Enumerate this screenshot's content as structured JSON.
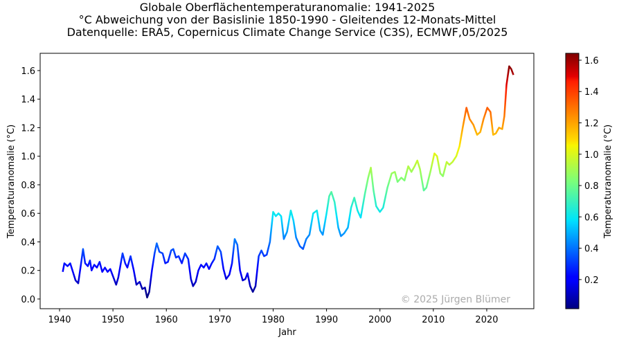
{
  "chart_data": {
    "type": "line",
    "title": [
      "Globale Oberflächentemperaturanomalie: 1941-2025",
      "°C Abweichung von der Basislinie 1850-1990 - Gleitendes 12-Monats-Mittel",
      "Datenquelle: ERA5, Copernicus Climate Change Service (C3S), ECMWF,05/2025"
    ],
    "x_label": "Jahr",
    "y_label": "Temperaturanomalie (°C)",
    "annotation": "© 2025 Jürgen Blümer",
    "colormap": "jet",
    "colorbar": {
      "label": "Temperaturanomalie (°C)",
      "clim": [
        0.014,
        1.644
      ],
      "ticks": [
        0.2,
        0.4,
        0.6,
        0.8,
        {
          "value": 1.0,
          "label": "1.0"
        },
        1.2,
        1.4,
        1.6
      ]
    },
    "x": [
      1940.6,
      1940.9,
      1941.5,
      1942,
      1942.5,
      1943,
      1943.5,
      1944,
      1944.4,
      1944.8,
      1945.3,
      1945.7,
      1946,
      1946.5,
      1947,
      1947.5,
      1948,
      1948.5,
      1949,
      1949.5,
      1950,
      1950.6,
      1951,
      1951.8,
      1952.3,
      1952.7,
      1953.3,
      1953.9,
      1954.4,
      1955,
      1955.5,
      1956,
      1956.4,
      1956.8,
      1957.3,
      1957.8,
      1958.2,
      1958.7,
      1959.3,
      1959.8,
      1960.3,
      1960.9,
      1961.3,
      1961.8,
      1962.3,
      1962.9,
      1963.5,
      1964.1,
      1964.6,
      1965,
      1965.5,
      1966,
      1966.5,
      1967,
      1967.5,
      1968,
      1968.5,
      1969,
      1969.6,
      1970.2,
      1970.7,
      1971.2,
      1971.8,
      1972.3,
      1972.8,
      1973.3,
      1973.8,
      1974.3,
      1974.8,
      1975.2,
      1975.7,
      1976.2,
      1976.7,
      1977.3,
      1977.8,
      1978.3,
      1978.8,
      1979.4,
      1980,
      1980.5,
      1981,
      1981.5,
      1982,
      1982.6,
      1983.3,
      1983.8,
      1984.3,
      1985,
      1985.6,
      1986.2,
      1986.8,
      1987.5,
      1988.2,
      1988.8,
      1989.3,
      1990,
      1990.5,
      1990.9,
      1991.5,
      1992.2,
      1992.7,
      1993.3,
      1994,
      1994.6,
      1995.2,
      1995.8,
      1996.4,
      1997.2,
      1997.8,
      1998.3,
      1998.8,
      1999.3,
      2000,
      2000.6,
      2001.4,
      2002.2,
      2002.8,
      2003.3,
      2004,
      2004.6,
      2005.3,
      2005.9,
      2006.5,
      2007,
      2007.5,
      2008.2,
      2008.7,
      2009.5,
      2010.2,
      2010.7,
      2011.3,
      2011.8,
      2012.5,
      2013,
      2013.6,
      2014.3,
      2014.9,
      2015.5,
      2016.2,
      2016.8,
      2017.5,
      2018.2,
      2018.8,
      2019.4,
      2020.1,
      2020.7,
      2021.2,
      2021.7,
      2022.3,
      2022.9,
      2023.3,
      2023.7,
      2024.2,
      2024.6,
      2025.0
    ],
    "values": [
      0.19,
      0.25,
      0.23,
      0.25,
      0.19,
      0.13,
      0.11,
      0.24,
      0.35,
      0.25,
      0.23,
      0.27,
      0.2,
      0.24,
      0.22,
      0.26,
      0.19,
      0.22,
      0.19,
      0.21,
      0.16,
      0.1,
      0.15,
      0.32,
      0.25,
      0.22,
      0.3,
      0.2,
      0.1,
      0.12,
      0.07,
      0.08,
      0.01,
      0.05,
      0.2,
      0.32,
      0.39,
      0.33,
      0.32,
      0.25,
      0.26,
      0.34,
      0.35,
      0.29,
      0.3,
      0.25,
      0.32,
      0.28,
      0.14,
      0.09,
      0.12,
      0.2,
      0.24,
      0.22,
      0.25,
      0.21,
      0.25,
      0.28,
      0.37,
      0.33,
      0.21,
      0.14,
      0.17,
      0.25,
      0.42,
      0.38,
      0.2,
      0.13,
      0.14,
      0.18,
      0.09,
      0.05,
      0.09,
      0.3,
      0.34,
      0.3,
      0.31,
      0.4,
      0.61,
      0.58,
      0.6,
      0.58,
      0.42,
      0.47,
      0.62,
      0.55,
      0.43,
      0.37,
      0.35,
      0.42,
      0.45,
      0.6,
      0.62,
      0.48,
      0.45,
      0.6,
      0.72,
      0.75,
      0.68,
      0.5,
      0.44,
      0.46,
      0.5,
      0.64,
      0.71,
      0.62,
      0.57,
      0.74,
      0.85,
      0.92,
      0.76,
      0.65,
      0.61,
      0.64,
      0.78,
      0.88,
      0.89,
      0.82,
      0.85,
      0.83,
      0.93,
      0.89,
      0.93,
      0.97,
      0.91,
      0.76,
      0.78,
      0.9,
      1.02,
      1.0,
      0.88,
      0.86,
      0.96,
      0.94,
      0.96,
      1.0,
      1.07,
      1.2,
      1.34,
      1.26,
      1.22,
      1.15,
      1.17,
      1.26,
      1.34,
      1.31,
      1.15,
      1.16,
      1.2,
      1.19,
      1.28,
      1.5,
      1.63,
      1.61,
      1.57
    ],
    "xlim": [
      1936.37,
      2028.82
    ],
    "ylim": [
      -0.068,
      1.721
    ],
    "xticks": [
      1940,
      1950,
      1960,
      1970,
      1980,
      1990,
      2000,
      2010,
      2020
    ],
    "yticks": [
      {
        "value": 0.0,
        "label": "0.0"
      },
      0.2,
      0.4,
      0.6,
      0.8,
      {
        "value": 1.0,
        "label": "1.0"
      },
      1.2,
      1.4,
      1.6
    ],
    "grid": false
  }
}
